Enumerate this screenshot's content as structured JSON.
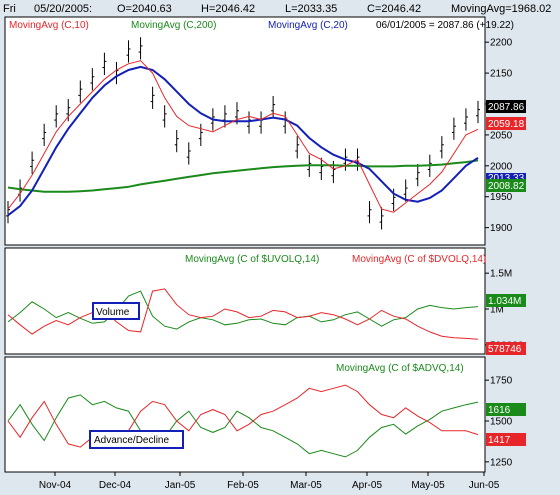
{
  "header": {
    "day": "Fri",
    "date": "05/20/2005:",
    "open": "O=2040.63",
    "high": "H=2046.42",
    "low": "L=2033.35",
    "close": "C=2046.42",
    "ma_value": "MovingAvg=1968.02"
  },
  "colors": {
    "price": "#000000",
    "ma10": "#e8262a",
    "ma200": "#1a8a1a",
    "ma20": "#1320b8",
    "up": "#1a8a1a",
    "down": "#e8262a",
    "frame_bg": "#dfe7ee"
  },
  "chart_data": [
    {
      "type": "line",
      "title": "",
      "legend": [
        "MovingAvg (C,10)",
        "MovingAvg (C,200)",
        "MovingAvg (C,20)"
      ],
      "annotation": "06/01/2005 = 2087.86 (+19.22)",
      "ylim": [
        1880,
        2210
      ],
      "yticks": [
        "2200",
        "2150",
        "2100",
        "2050",
        "2000",
        "1950",
        "1900"
      ],
      "last_values": {
        "price": "2087.86",
        "ma10": "2059.18",
        "ma20": "2013.33",
        "ma200": "2008.82"
      },
      "series": [
        {
          "name": "MovingAvg (C,10)",
          "values": [
            1930,
            1955,
            1985,
            2020,
            2055,
            2080,
            2100,
            2120,
            2140,
            2155,
            2165,
            2170,
            2150,
            2110,
            2080,
            2065,
            2060,
            2055,
            2065,
            2075,
            2080,
            2075,
            2085,
            2080,
            2050,
            2020,
            2010,
            1995,
            2000,
            2010,
            1970,
            1930,
            1925,
            1940,
            1955,
            1970,
            1990,
            2020,
            2050,
            2059
          ]
        },
        {
          "name": "MovingAvg (C,20)",
          "values": [
            1920,
            1935,
            1960,
            1995,
            2030,
            2060,
            2085,
            2110,
            2130,
            2145,
            2155,
            2160,
            2155,
            2140,
            2120,
            2100,
            2085,
            2075,
            2072,
            2072,
            2072,
            2075,
            2078,
            2075,
            2065,
            2045,
            2030,
            2018,
            2010,
            2005,
            1995,
            1975,
            1955,
            1945,
            1942,
            1948,
            1960,
            1980,
            2000,
            2013
          ]
        },
        {
          "name": "MovingAvg (C,200)",
          "values": [
            1965,
            1962,
            1960,
            1958,
            1958,
            1958,
            1959,
            1960,
            1962,
            1964,
            1966,
            1970,
            1973,
            1976,
            1979,
            1982,
            1985,
            1988,
            1990,
            1992,
            1994,
            1996,
            1998,
            1999,
            2000,
            2001,
            2001,
            2001,
            2000,
            2000,
            1999,
            1999,
            1999,
            2000,
            2000,
            2001,
            2002,
            2004,
            2006,
            2008.82
          ]
        },
        {
          "name": "price",
          "values": [
            1925,
            1960,
            2005,
            2050,
            2080,
            2090,
            2120,
            2140,
            2165,
            2150,
            2185,
            2190,
            2110,
            2080,
            2040,
            2020,
            2050,
            2075,
            2080,
            2085,
            2070,
            2070,
            2095,
            2070,
            2030,
            2000,
            1995,
            1990,
            2010,
            2010,
            1925,
            1915,
            1945,
            1960,
            1985,
            2000,
            2030,
            2060,
            2075,
            2087
          ]
        }
      ]
    },
    {
      "type": "line",
      "legend": [
        "MovingAvg (C of $UVOLQ,14)",
        "MovingAvg (C of $DVOLQ,14)"
      ],
      "box_label": "Volume",
      "yticks": [
        "1.5M",
        "1M",
        "500000"
      ],
      "ylim": [
        400000,
        1600000
      ],
      "last_values": {
        "up": "1.034M",
        "down": "578746"
      },
      "series": [
        {
          "name": "MovingAvg (C of $UVOLQ,14)",
          "values": [
            820000,
            950000,
            1100000,
            1000000,
            880000,
            950000,
            870000,
            800000,
            820000,
            980000,
            1180000,
            1250000,
            900000,
            760000,
            720000,
            820000,
            880000,
            850000,
            780000,
            800000,
            850000,
            860000,
            800000,
            780000,
            880000,
            900000,
            820000,
            850000,
            920000,
            960000,
            860000,
            760000,
            850000,
            880000,
            1000000,
            1050000,
            1020000,
            1000000,
            1020000,
            1034000
          ]
        },
        {
          "name": "MovingAvg (C of $DVOLQ,14)",
          "values": [
            920000,
            780000,
            650000,
            760000,
            840000,
            780000,
            880000,
            950000,
            980000,
            820000,
            700000,
            680000,
            1250000,
            1280000,
            1060000,
            920000,
            880000,
            900000,
            1000000,
            960000,
            880000,
            900000,
            980000,
            960000,
            880000,
            900000,
            950000,
            920000,
            860000,
            780000,
            860000,
            980000,
            900000,
            860000,
            760000,
            680000,
            620000,
            600000,
            590000,
            578746
          ]
        }
      ]
    },
    {
      "type": "line",
      "legend": [
        "MovingAvg (C of $ADVQ,14)"
      ],
      "box_label": "Advance/Decline",
      "yticks": [
        "1750",
        "1500",
        "1250"
      ],
      "ylim": [
        1200,
        1800
      ],
      "last_values": {
        "up": "1616",
        "down": "1417"
      },
      "series": [
        {
          "name": "MovingAvg (C of $ADVQ,14)",
          "values": [
            1500,
            1600,
            1480,
            1380,
            1520,
            1640,
            1660,
            1600,
            1620,
            1580,
            1560,
            1440,
            1380,
            1400,
            1500,
            1560,
            1460,
            1430,
            1460,
            1560,
            1520,
            1460,
            1440,
            1400,
            1360,
            1300,
            1320,
            1300,
            1280,
            1320,
            1400,
            1460,
            1480,
            1420,
            1470,
            1510,
            1560,
            1580,
            1600,
            1616
          ]
        },
        {
          "name": "decline",
          "values": [
            1500,
            1400,
            1520,
            1620,
            1480,
            1360,
            1340,
            1400,
            1380,
            1420,
            1440,
            1560,
            1620,
            1600,
            1500,
            1440,
            1540,
            1570,
            1540,
            1440,
            1480,
            1540,
            1560,
            1600,
            1640,
            1700,
            1680,
            1700,
            1720,
            1680,
            1600,
            1540,
            1520,
            1580,
            1530,
            1490,
            1440,
            1440,
            1440,
            1417
          ]
        }
      ]
    }
  ],
  "xaxis": {
    "labels": [
      "Nov-04",
      "Dec-04",
      "Jan-05",
      "Feb-05",
      "Mar-05",
      "Apr-05",
      "May-05",
      "Jun-05"
    ]
  }
}
